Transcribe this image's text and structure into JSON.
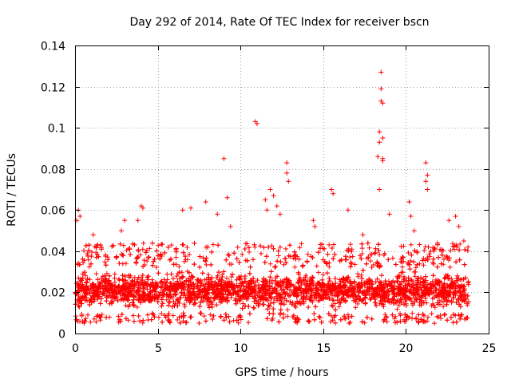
{
  "chart_data": {
    "type": "scatter",
    "title": "Day 292 of 2014, Rate Of TEC Index for receiver bscn",
    "xlabel": "GPS time / hours",
    "ylabel": "ROTI / TECUs",
    "xlim": [
      0,
      25
    ],
    "ylim": [
      0,
      0.14
    ],
    "xticks": [
      0,
      5,
      10,
      15,
      20,
      25
    ],
    "yticks": [
      0,
      0.02,
      0.04,
      0.06,
      0.08,
      0.1,
      0.12,
      0.14
    ],
    "ytick_labels": [
      "0",
      "0.02",
      "0.04",
      "0.06",
      "0.08",
      "0.1",
      "0.12",
      "0.14"
    ],
    "grid": true,
    "marker": "+",
    "color": "#ff0000",
    "series": [
      {
        "name": "ROTI",
        "x_range": [
          0,
          23.8
        ],
        "baseline_envelope": {
          "min": 0.005,
          "typical_low": 0.01,
          "typical_high": 0.032
        },
        "notable_points": [
          {
            "x": 0.2,
            "y": 0.06
          },
          {
            "x": 0.3,
            "y": 0.057
          },
          {
            "x": 0.1,
            "y": 0.055
          },
          {
            "x": 1.1,
            "y": 0.048
          },
          {
            "x": 2.8,
            "y": 0.05
          },
          {
            "x": 3.0,
            "y": 0.055
          },
          {
            "x": 4.0,
            "y": 0.062
          },
          {
            "x": 4.1,
            "y": 0.061
          },
          {
            "x": 3.8,
            "y": 0.055
          },
          {
            "x": 6.5,
            "y": 0.06
          },
          {
            "x": 7.0,
            "y": 0.061
          },
          {
            "x": 7.9,
            "y": 0.064
          },
          {
            "x": 8.6,
            "y": 0.058
          },
          {
            "x": 9.0,
            "y": 0.085
          },
          {
            "x": 9.2,
            "y": 0.066
          },
          {
            "x": 9.4,
            "y": 0.052
          },
          {
            "x": 10.9,
            "y": 0.103
          },
          {
            "x": 11.0,
            "y": 0.102
          },
          {
            "x": 11.5,
            "y": 0.065
          },
          {
            "x": 11.6,
            "y": 0.06
          },
          {
            "x": 11.8,
            "y": 0.07
          },
          {
            "x": 12.0,
            "y": 0.067
          },
          {
            "x": 12.2,
            "y": 0.062
          },
          {
            "x": 12.4,
            "y": 0.058
          },
          {
            "x": 12.8,
            "y": 0.083
          },
          {
            "x": 12.8,
            "y": 0.078
          },
          {
            "x": 12.9,
            "y": 0.074
          },
          {
            "x": 14.4,
            "y": 0.055
          },
          {
            "x": 14.5,
            "y": 0.052
          },
          {
            "x": 15.5,
            "y": 0.07
          },
          {
            "x": 15.6,
            "y": 0.068
          },
          {
            "x": 16.5,
            "y": 0.06
          },
          {
            "x": 17.4,
            "y": 0.048
          },
          {
            "x": 18.3,
            "y": 0.086
          },
          {
            "x": 18.4,
            "y": 0.07
          },
          {
            "x": 18.4,
            "y": 0.098
          },
          {
            "x": 18.4,
            "y": 0.093
          },
          {
            "x": 18.5,
            "y": 0.127
          },
          {
            "x": 18.5,
            "y": 0.119
          },
          {
            "x": 18.5,
            "y": 0.113
          },
          {
            "x": 18.6,
            "y": 0.112
          },
          {
            "x": 18.6,
            "y": 0.085
          },
          {
            "x": 18.6,
            "y": 0.084
          },
          {
            "x": 18.6,
            "y": 0.095
          },
          {
            "x": 19.0,
            "y": 0.058
          },
          {
            "x": 20.2,
            "y": 0.064
          },
          {
            "x": 20.3,
            "y": 0.057
          },
          {
            "x": 20.5,
            "y": 0.05
          },
          {
            "x": 21.2,
            "y": 0.083
          },
          {
            "x": 21.3,
            "y": 0.077
          },
          {
            "x": 21.2,
            "y": 0.074
          },
          {
            "x": 21.3,
            "y": 0.07
          },
          {
            "x": 22.6,
            "y": 0.055
          },
          {
            "x": 23.0,
            "y": 0.057
          },
          {
            "x": 23.2,
            "y": 0.052
          },
          {
            "x": 23.5,
            "y": 0.045
          }
        ]
      }
    ]
  }
}
